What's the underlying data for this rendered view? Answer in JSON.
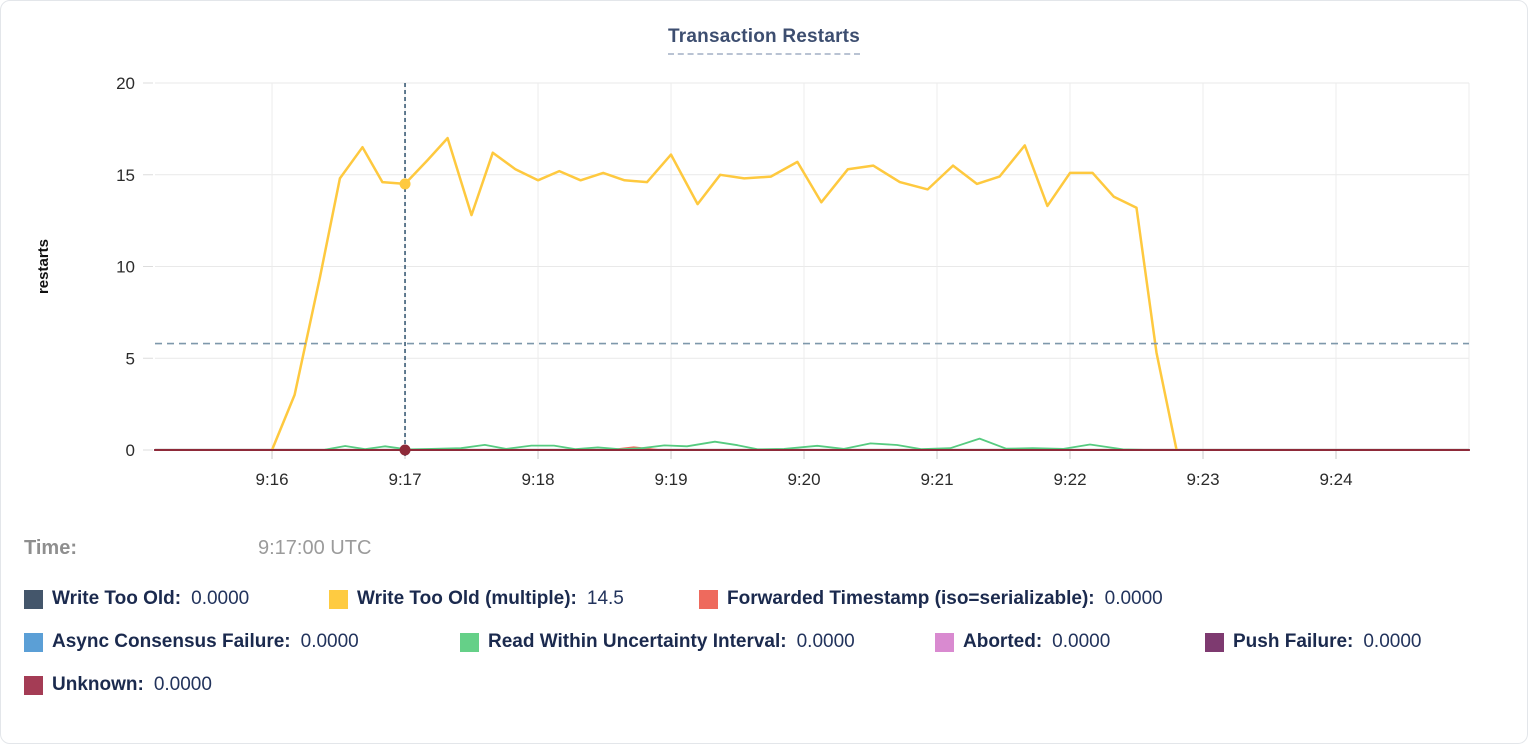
{
  "tooltip": {
    "time_label": "Time:",
    "time_value": "9:17:00 UTC"
  },
  "legend": {
    "items": [
      {
        "label": "Write Too Old:",
        "value": "0.0000",
        "color": "#44566b"
      },
      {
        "label": "Write Too Old (multiple):",
        "value": "14.5",
        "color": "#fecb41"
      },
      {
        "label": "Forwarded Timestamp (iso=serializable):",
        "value": "0.0000",
        "color": "#ee6a5d"
      },
      {
        "label": "Async Consensus Failure:",
        "value": "0.0000",
        "color": "#5b9fd6"
      },
      {
        "label": "Read Within Uncertainty Interval:",
        "value": "0.0000",
        "color": "#65d088"
      },
      {
        "label": "Aborted:",
        "value": "0.0000",
        "color": "#d98ad0"
      },
      {
        "label": "Push Failure:",
        "value": "0.0000",
        "color": "#7e3a70"
      },
      {
        "label": "Unknown:",
        "value": "0.0000",
        "color": "#a43c55"
      }
    ]
  },
  "chart_data": {
    "type": "line",
    "title": "Transaction Restarts",
    "xlabel": "",
    "ylabel": "restarts",
    "ylim": [
      0,
      20
    ],
    "grid": true,
    "x_domain_minutes": [
      15.12,
      25.0
    ],
    "yticks": [
      {
        "v": 0,
        "label": "0"
      },
      {
        "v": 5,
        "label": "5"
      },
      {
        "v": 10,
        "label": "10"
      },
      {
        "v": 15,
        "label": "15"
      },
      {
        "v": 20,
        "label": "20"
      }
    ],
    "xticks": [
      {
        "minute": 16,
        "label": "9:16"
      },
      {
        "minute": 17,
        "label": "9:17"
      },
      {
        "minute": 18,
        "label": "9:18"
      },
      {
        "minute": 19,
        "label": "9:19"
      },
      {
        "minute": 20,
        "label": "9:20"
      },
      {
        "minute": 21,
        "label": "9:21"
      },
      {
        "minute": 22,
        "label": "9:22"
      },
      {
        "minute": 23,
        "label": "9:23"
      },
      {
        "minute": 24,
        "label": "9:24"
      }
    ],
    "threshold_line": {
      "y": 5.8,
      "color": "#7e98ab"
    },
    "cursor": {
      "minute": 17.0,
      "time": "9:17:00 UTC",
      "color": "#3a5a75",
      "dots": [
        {
          "series": "Write Too Old (multiple)",
          "value": 14.5,
          "color": "#fec93f"
        },
        {
          "series": "Unknown",
          "value": 0,
          "color": "#8e2a39"
        }
      ]
    },
    "series": [
      {
        "name": "Write Too Old",
        "color": "#44566b",
        "width": 2,
        "values": [
          [
            15.12,
            0
          ],
          [
            25.0,
            0
          ]
        ]
      },
      {
        "name": "Write Too Old (multiple)",
        "color": "#fec93f",
        "width": 2.5,
        "values": [
          [
            16.0,
            0
          ],
          [
            16.17,
            3.0
          ],
          [
            16.36,
            9.4
          ],
          [
            16.51,
            14.8
          ],
          [
            16.68,
            16.5
          ],
          [
            16.83,
            14.6
          ],
          [
            17.0,
            14.5
          ],
          [
            17.17,
            15.8
          ],
          [
            17.32,
            17.0
          ],
          [
            17.5,
            12.8
          ],
          [
            17.66,
            16.2
          ],
          [
            17.83,
            15.3
          ],
          [
            18.0,
            14.7
          ],
          [
            18.16,
            15.2
          ],
          [
            18.32,
            14.7
          ],
          [
            18.49,
            15.1
          ],
          [
            18.65,
            14.7
          ],
          [
            18.82,
            14.6
          ],
          [
            19.0,
            16.1
          ],
          [
            19.2,
            13.4
          ],
          [
            19.37,
            15.0
          ],
          [
            19.55,
            14.8
          ],
          [
            19.75,
            14.9
          ],
          [
            19.95,
            15.7
          ],
          [
            20.13,
            13.5
          ],
          [
            20.33,
            15.3
          ],
          [
            20.52,
            15.5
          ],
          [
            20.72,
            14.6
          ],
          [
            20.93,
            14.2
          ],
          [
            21.12,
            15.5
          ],
          [
            21.3,
            14.5
          ],
          [
            21.47,
            14.9
          ],
          [
            21.66,
            16.6
          ],
          [
            21.83,
            13.3
          ],
          [
            22.0,
            15.1
          ],
          [
            22.17,
            15.1
          ],
          [
            22.33,
            13.8
          ],
          [
            22.5,
            13.2
          ],
          [
            22.65,
            5.3
          ],
          [
            22.8,
            0.05
          ]
        ]
      },
      {
        "name": "Forwarded Timestamp (iso=serializable)",
        "color": "#ee6a5d",
        "width": 2,
        "values": [
          [
            15.12,
            0
          ],
          [
            18.55,
            0
          ],
          [
            18.72,
            0.14
          ],
          [
            18.9,
            0
          ],
          [
            25.0,
            0
          ]
        ]
      },
      {
        "name": "Async Consensus Failure",
        "color": "#5b9fd6",
        "width": 2,
        "values": [
          [
            15.12,
            0
          ],
          [
            25.0,
            0
          ]
        ]
      },
      {
        "name": "Read Within Uncertainty Interval",
        "color": "#56cb80",
        "width": 1.8,
        "values": [
          [
            16.4,
            0.02
          ],
          [
            16.55,
            0.22
          ],
          [
            16.7,
            0.05
          ],
          [
            16.85,
            0.2
          ],
          [
            17.02,
            0.03
          ],
          [
            17.2,
            0.06
          ],
          [
            17.42,
            0.1
          ],
          [
            17.6,
            0.28
          ],
          [
            17.76,
            0.06
          ],
          [
            17.95,
            0.24
          ],
          [
            18.12,
            0.24
          ],
          [
            18.28,
            0.05
          ],
          [
            18.45,
            0.14
          ],
          [
            18.62,
            0.04
          ],
          [
            18.78,
            0.1
          ],
          [
            18.95,
            0.25
          ],
          [
            19.12,
            0.2
          ],
          [
            19.33,
            0.45
          ],
          [
            19.5,
            0.26
          ],
          [
            19.65,
            0.04
          ],
          [
            19.85,
            0.06
          ],
          [
            20.1,
            0.23
          ],
          [
            20.3,
            0.06
          ],
          [
            20.5,
            0.36
          ],
          [
            20.7,
            0.27
          ],
          [
            20.88,
            0.05
          ],
          [
            21.1,
            0.1
          ],
          [
            21.32,
            0.62
          ],
          [
            21.52,
            0.07
          ],
          [
            21.72,
            0.1
          ],
          [
            21.95,
            0.06
          ],
          [
            22.15,
            0.3
          ],
          [
            22.4,
            0.03
          ],
          [
            22.58,
            0.0
          ]
        ]
      },
      {
        "name": "Aborted",
        "color": "#d98ad0",
        "width": 2,
        "values": [
          [
            15.12,
            0
          ],
          [
            25.0,
            0
          ]
        ]
      },
      {
        "name": "Push Failure",
        "color": "#7e3a70",
        "width": 2,
        "values": [
          [
            15.12,
            0
          ],
          [
            25.0,
            0
          ]
        ]
      },
      {
        "name": "Unknown",
        "color": "#8e2a39",
        "width": 2,
        "values": [
          [
            15.12,
            0
          ],
          [
            25.0,
            0
          ]
        ]
      }
    ]
  }
}
